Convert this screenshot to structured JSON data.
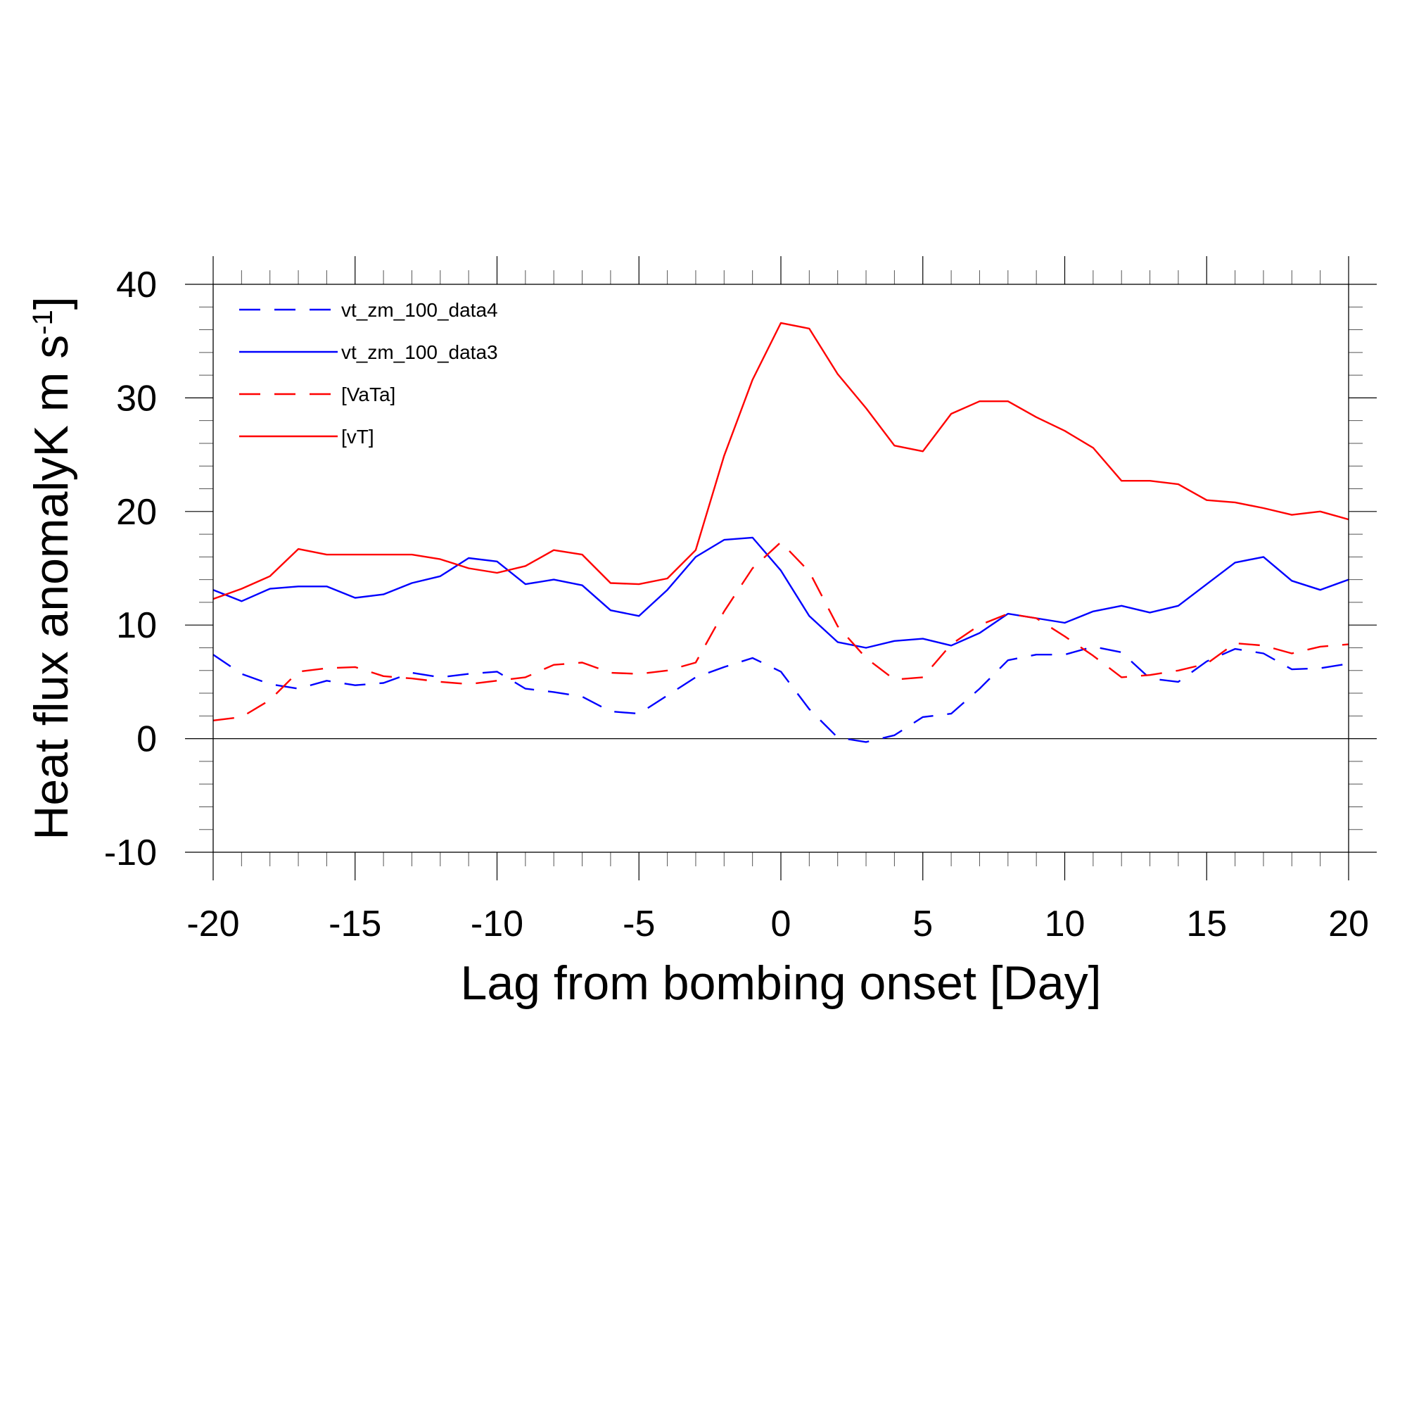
{
  "chart_data": {
    "type": "line",
    "xlabel": "Lag from bombing onset [Day]",
    "ylabel_main": "Heat flux anomalyK m s",
    "ylabel_sup": "-1",
    "ylabel_end": "]",
    "xlim": [
      -20,
      20
    ],
    "ylim": [
      -10,
      40
    ],
    "xticks": [
      -20,
      -15,
      -10,
      -5,
      0,
      5,
      10,
      15,
      20
    ],
    "yticks": [
      -10,
      0,
      10,
      20,
      30,
      40
    ],
    "xtick_labels": [
      "-20",
      "-15",
      "-10",
      "-5",
      "0",
      "5",
      "10",
      "15",
      "20"
    ],
    "ytick_labels": [
      "-10",
      "0",
      "10",
      "20",
      "30",
      "40"
    ],
    "reference_line_y": 0,
    "legend_position": "top-left",
    "x": [
      -20,
      -19,
      -18,
      -17,
      -16,
      -15,
      -14,
      -13,
      -12,
      -11,
      -10,
      -9,
      -8,
      -7,
      -6,
      -5,
      -4,
      -3,
      -2,
      -1,
      0,
      1,
      2,
      3,
      4,
      5,
      6,
      7,
      8,
      9,
      10,
      11,
      12,
      13,
      14,
      15,
      16,
      17,
      18,
      19,
      20
    ],
    "series": [
      {
        "name": "vt_zm_100_data4",
        "color": "#0000ff",
        "dash": "dashed",
        "values": [
          7.4,
          5.7,
          4.8,
          4.4,
          5.1,
          4.7,
          4.9,
          5.8,
          5.4,
          5.7,
          5.9,
          4.4,
          4.1,
          3.7,
          2.4,
          2.2,
          3.8,
          5.4,
          6.3,
          7.1,
          5.9,
          2.6,
          0.1,
          -0.3,
          0.3,
          1.9,
          2.2,
          4.4,
          6.9,
          7.4,
          7.4,
          8.1,
          7.6,
          5.3,
          5.0,
          6.8,
          7.9,
          7.5,
          6.1,
          6.2,
          6.6
        ]
      },
      {
        "name": "vt_zm_100_data3",
        "color": "#0000ff",
        "dash": "solid",
        "values": [
          13.1,
          12.1,
          13.2,
          13.4,
          13.4,
          12.4,
          12.7,
          13.7,
          14.3,
          15.9,
          15.6,
          13.6,
          14.0,
          13.5,
          11.3,
          10.8,
          13.1,
          16.0,
          17.5,
          17.7,
          14.8,
          10.8,
          8.5,
          8.0,
          8.6,
          8.8,
          8.2,
          9.3,
          11.0,
          10.6,
          10.2,
          11.2,
          11.7,
          11.1,
          11.7,
          13.6,
          15.5,
          16.0,
          13.9,
          13.1,
          14.0
        ]
      },
      {
        "name": "[VaTa]",
        "color": "#ff0000",
        "dash": "dashed",
        "values": [
          1.6,
          1.9,
          3.4,
          5.9,
          6.2,
          6.3,
          5.5,
          5.3,
          5.0,
          4.8,
          5.1,
          5.4,
          6.5,
          6.7,
          5.8,
          5.7,
          6.0,
          6.7,
          11.2,
          15.0,
          17.3,
          14.7,
          9.9,
          7.1,
          5.2,
          5.4,
          8.3,
          10.0,
          11.0,
          10.6,
          9.0,
          7.3,
          5.4,
          5.6,
          6.0,
          6.6,
          8.4,
          8.2,
          7.5,
          8.1,
          8.3
        ]
      },
      {
        "name": "[vT]",
        "color": "#ff0000",
        "dash": "solid",
        "values": [
          12.3,
          13.2,
          14.3,
          16.7,
          16.2,
          16.2,
          16.2,
          16.2,
          15.8,
          15.0,
          14.6,
          15.2,
          16.6,
          16.2,
          13.7,
          13.6,
          14.1,
          16.6,
          24.9,
          31.6,
          36.6,
          36.1,
          32.1,
          29.1,
          25.8,
          25.3,
          28.6,
          29.7,
          29.7,
          28.3,
          27.1,
          25.6,
          22.7,
          22.7,
          22.4,
          21.0,
          20.8,
          20.3,
          19.7,
          20.0,
          19.3
        ]
      }
    ]
  }
}
